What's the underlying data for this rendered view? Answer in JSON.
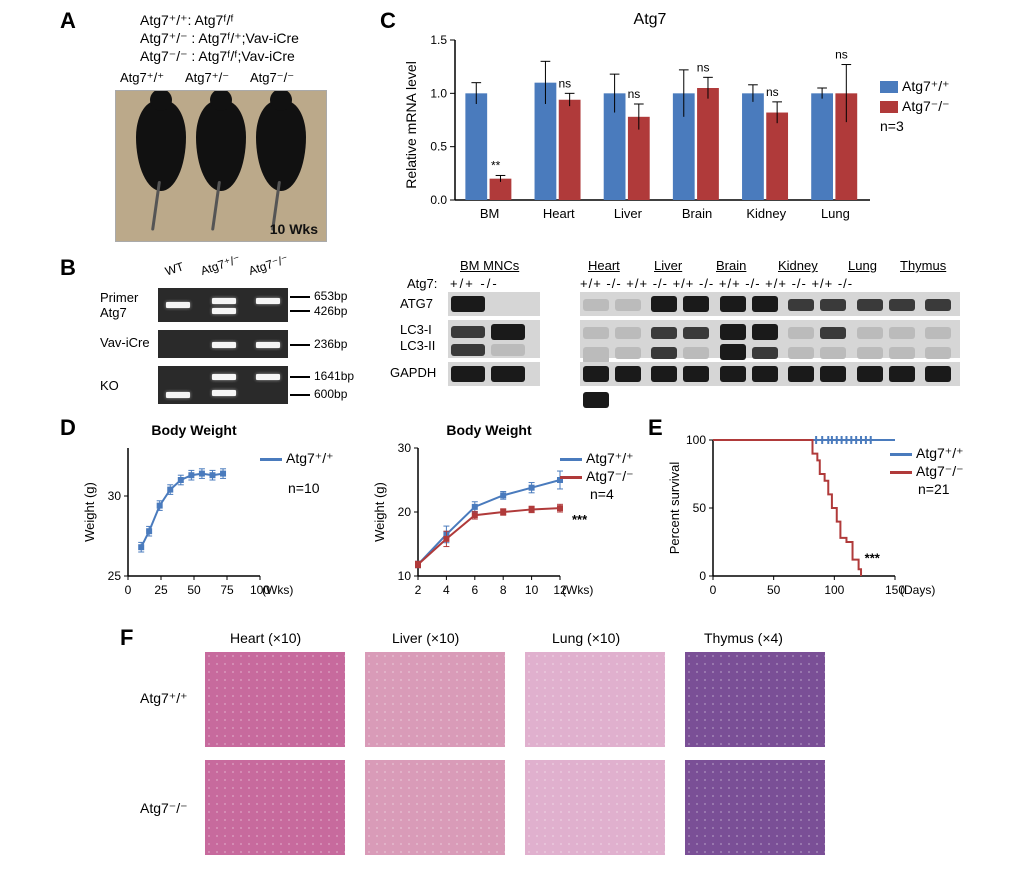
{
  "panelLabels": {
    "A": "A",
    "B": "B",
    "C": "C",
    "D": "D",
    "E": "E",
    "F": "F"
  },
  "A": {
    "genotype_lines": [
      "Atg7⁺/⁺: Atg7ᶠ/ᶠ",
      "Atg7⁺/⁻ : Atg7ᶠ/⁺;Vav-iCre",
      "Atg7⁻/⁻ : Atg7ᶠ/ᶠ;Vav-iCre"
    ],
    "photo_labels": [
      "Atg7⁺/⁺",
      "Atg7⁺/⁻",
      "Atg7⁻/⁻"
    ],
    "wks": "10 Wks"
  },
  "B": {
    "lane_labels": [
      "WT",
      "Atg7⁺/⁻",
      "Atg7⁻/⁻"
    ],
    "rows": [
      {
        "label": "Primer\nAtg7",
        "bp": [
          "653bp",
          "426bp"
        ]
      },
      {
        "label": "Vav-iCre",
        "bp": [
          "236bp"
        ]
      },
      {
        "label": "KO",
        "bp": [
          "1641bp",
          "600bp"
        ]
      }
    ]
  },
  "C": {
    "chart": {
      "title": "Atg7",
      "type": "bar",
      "ylabel": "Relative mRNA level",
      "ylim": [
        0,
        1.5
      ],
      "ytick_step": 0.5,
      "categories": [
        "BM",
        "Heart",
        "Liver",
        "Brain",
        "Kidney",
        "Lung"
      ],
      "series": [
        {
          "name": "Atg7⁺/⁺",
          "color": "#4a7bbd",
          "values": [
            1.0,
            1.1,
            1.0,
            1.0,
            1.0,
            1.0
          ],
          "err": [
            0.1,
            0.2,
            0.18,
            0.22,
            0.08,
            0.05
          ]
        },
        {
          "name": "Atg7⁻/⁻",
          "color": "#b03a3a",
          "values": [
            0.2,
            0.94,
            0.78,
            1.05,
            0.82,
            1.0
          ],
          "err": [
            0.03,
            0.06,
            0.12,
            0.1,
            0.1,
            0.27
          ]
        }
      ],
      "sig": [
        "**",
        "ns",
        "ns",
        "ns",
        "ns",
        "ns"
      ],
      "n_label": "n=3",
      "bar_width": 0.35,
      "grid": false,
      "axis_color": "#000000",
      "label_fontsize": 14,
      "title_fontsize": 16
    },
    "blot": {
      "tissue_groups_left": [
        "BM MNCs"
      ],
      "tissue_groups_right": [
        "Heart",
        "Liver",
        "Brain",
        "Kidney",
        "Lung",
        "Thymus"
      ],
      "condition_row_label": "Atg7:",
      "conditions": [
        "+/+",
        "-/-"
      ],
      "row_labels": [
        "ATG7",
        "LC3-I",
        "LC3-II",
        "GAPDH"
      ]
    }
  },
  "D": {
    "chart1": {
      "title": "Body Weight",
      "type": "line",
      "xlabel": "(Wks)",
      "ylabel": "Weight (g)",
      "xlim": [
        0,
        100
      ],
      "xtick_step": 25,
      "ylim": [
        25,
        33
      ],
      "yticks": [
        25,
        30
      ],
      "series": [
        {
          "name": "Atg7⁺/⁺",
          "color": "#4a7bbd",
          "x": [
            10,
            16,
            24,
            32,
            40,
            48,
            56,
            64,
            72
          ],
          "y": [
            26.8,
            27.8,
            29.4,
            30.4,
            31.0,
            31.3,
            31.4,
            31.3,
            31.4
          ],
          "err": 0.3
        }
      ],
      "n_label": "n=10",
      "marker": "square",
      "line_width": 2,
      "axis_color": "#000000"
    },
    "chart2": {
      "title": "Body Weight",
      "type": "line",
      "xlabel": "(Wks)",
      "ylabel": "Weight (g)",
      "xlim": [
        2,
        12
      ],
      "xtick_step": 2,
      "ylim": [
        10,
        30
      ],
      "ytick_step": 10,
      "series": [
        {
          "name": "Atg7⁺/⁺",
          "color": "#4a7bbd",
          "x": [
            2,
            4,
            6,
            8,
            10,
            12
          ],
          "y": [
            11.8,
            16.5,
            20.8,
            22.6,
            23.8,
            25.0
          ],
          "err": [
            0.5,
            1.3,
            0.8,
            0.6,
            0.8,
            1.4
          ]
        },
        {
          "name": "Atg7⁻/⁻",
          "color": "#b03a3a",
          "x": [
            2,
            4,
            6,
            8,
            10,
            12
          ],
          "y": [
            11.8,
            15.8,
            19.5,
            20.0,
            20.4,
            20.6
          ],
          "err": [
            0.5,
            1.2,
            0.6,
            0.5,
            0.5,
            0.6
          ]
        }
      ],
      "sig": "***",
      "n_label": "n=4",
      "marker": "square",
      "line_width": 2,
      "axis_color": "#000000"
    }
  },
  "E": {
    "chart": {
      "title": "",
      "type": "survival",
      "xlabel": "(Days)",
      "ylabel": "Percent survival",
      "xlim": [
        0,
        150
      ],
      "xtick_step": 50,
      "ylim": [
        0,
        100
      ],
      "ytick_step": 50,
      "series": [
        {
          "name": "Atg7⁺/⁺",
          "color": "#4a7bbd",
          "steps": [
            [
              0,
              100
            ],
            [
              150,
              100
            ]
          ],
          "ticks_x": [
            85,
            90,
            95,
            98,
            102,
            106,
            110,
            114,
            118,
            122,
            126,
            130
          ]
        },
        {
          "name": "Atg7⁻/⁻",
          "color": "#b03a3a",
          "steps": [
            [
              0,
              100
            ],
            [
              80,
              100
            ],
            [
              82,
              90
            ],
            [
              86,
              85
            ],
            [
              88,
              75
            ],
            [
              92,
              70
            ],
            [
              95,
              60
            ],
            [
              98,
              50
            ],
            [
              102,
              40
            ],
            [
              105,
              28
            ],
            [
              110,
              25
            ],
            [
              115,
              12
            ],
            [
              120,
              5
            ],
            [
              122,
              0
            ]
          ]
        }
      ],
      "sig": "***",
      "n_label": "n=21",
      "line_width": 2,
      "axis_color": "#000000"
    }
  },
  "F": {
    "col_headers": [
      "Heart (×10)",
      "Liver (×10)",
      "Lung (×10)",
      "Thymus (×4)"
    ],
    "row_labels": [
      "Atg7⁺/⁺",
      "Atg7⁻/⁻"
    ],
    "colors": {
      "heart": "#c76a9d",
      "liver": "#d99bb8",
      "lung": "#e0b0ce",
      "thymus": "#7a4f96"
    }
  }
}
